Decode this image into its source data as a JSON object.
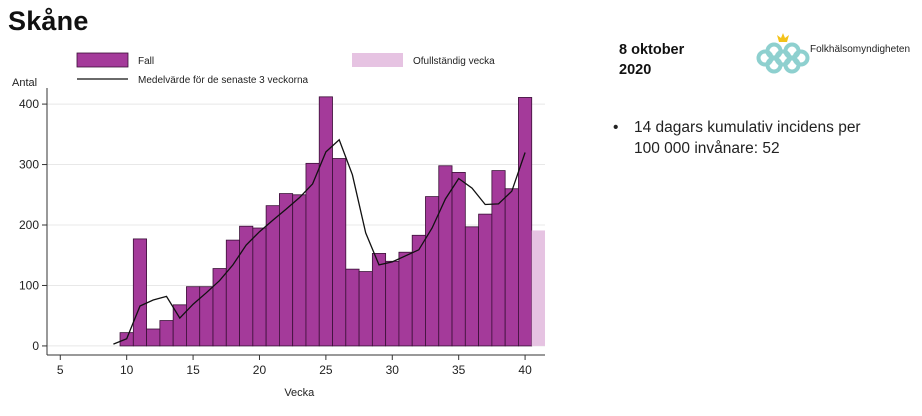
{
  "slide": {
    "title": "Skåne",
    "date_line1": "8 oktober",
    "date_line2": "2020",
    "logo_text": "Folkhälsomyndigheten",
    "bullet_line1": "14 dagars kumulativ incidens per",
    "bullet_line2": "100 000 invånare: 52"
  },
  "colors": {
    "bar_fill": "#a43a9a",
    "bar_stroke": "#3a1037",
    "incomplete_fill": "#e6c3e2",
    "line": "#111111",
    "grid": "#e8e8e8",
    "logo_teal": "#8ed0cf",
    "logo_gold": "#f3c21a"
  },
  "chart_data": {
    "type": "bar",
    "xlabel": "Vecka",
    "ylabel": "Antal",
    "xlim": [
      4,
      41.5
    ],
    "ylim": [
      -15,
      420
    ],
    "xticks": [
      5,
      10,
      15,
      20,
      25,
      30,
      35,
      40
    ],
    "yticks": [
      0,
      100,
      200,
      300,
      400
    ],
    "grid": true,
    "legend": {
      "bars": "Fall",
      "line": "Medelvärde för de senaste 3 veckorna",
      "incomplete": "Ofullständig vecka",
      "placement": "top"
    },
    "series": [
      {
        "name": "Fall",
        "type": "bar",
        "x": [
          10,
          11,
          12,
          13,
          14,
          15,
          16,
          17,
          18,
          19,
          20,
          21,
          22,
          23,
          24,
          25,
          26,
          27,
          28,
          29,
          30,
          31,
          32,
          33,
          34,
          35,
          36,
          37,
          38,
          39,
          40
        ],
        "values": [
          22,
          177,
          28,
          42,
          68,
          98,
          98,
          128,
          175,
          198,
          195,
          232,
          252,
          250,
          302,
          412,
          310,
          127,
          123,
          153,
          140,
          155,
          183,
          247,
          298,
          287,
          197,
          218,
          290,
          260,
          411
        ]
      },
      {
        "name": "Ofullständig vecka",
        "type": "bar",
        "x": [
          41
        ],
        "values": [
          191
        ]
      },
      {
        "name": "Medelvärde för de senaste 3 veckorna",
        "type": "line",
        "x": [
          9,
          10,
          11,
          12,
          13,
          14,
          15,
          16,
          17,
          18,
          19,
          20,
          21,
          22,
          23,
          24,
          25,
          26,
          27,
          28,
          29,
          30,
          31,
          32,
          33,
          34,
          35,
          36,
          37,
          38,
          39,
          40
        ],
        "values": [
          3,
          12,
          66,
          76,
          82,
          46,
          69,
          88,
          108,
          134,
          167,
          189,
          208,
          226,
          245,
          268,
          321,
          341,
          283,
          187,
          134,
          139,
          149,
          159,
          195,
          243,
          277,
          261,
          234,
          235,
          256,
          320
        ]
      }
    ]
  }
}
